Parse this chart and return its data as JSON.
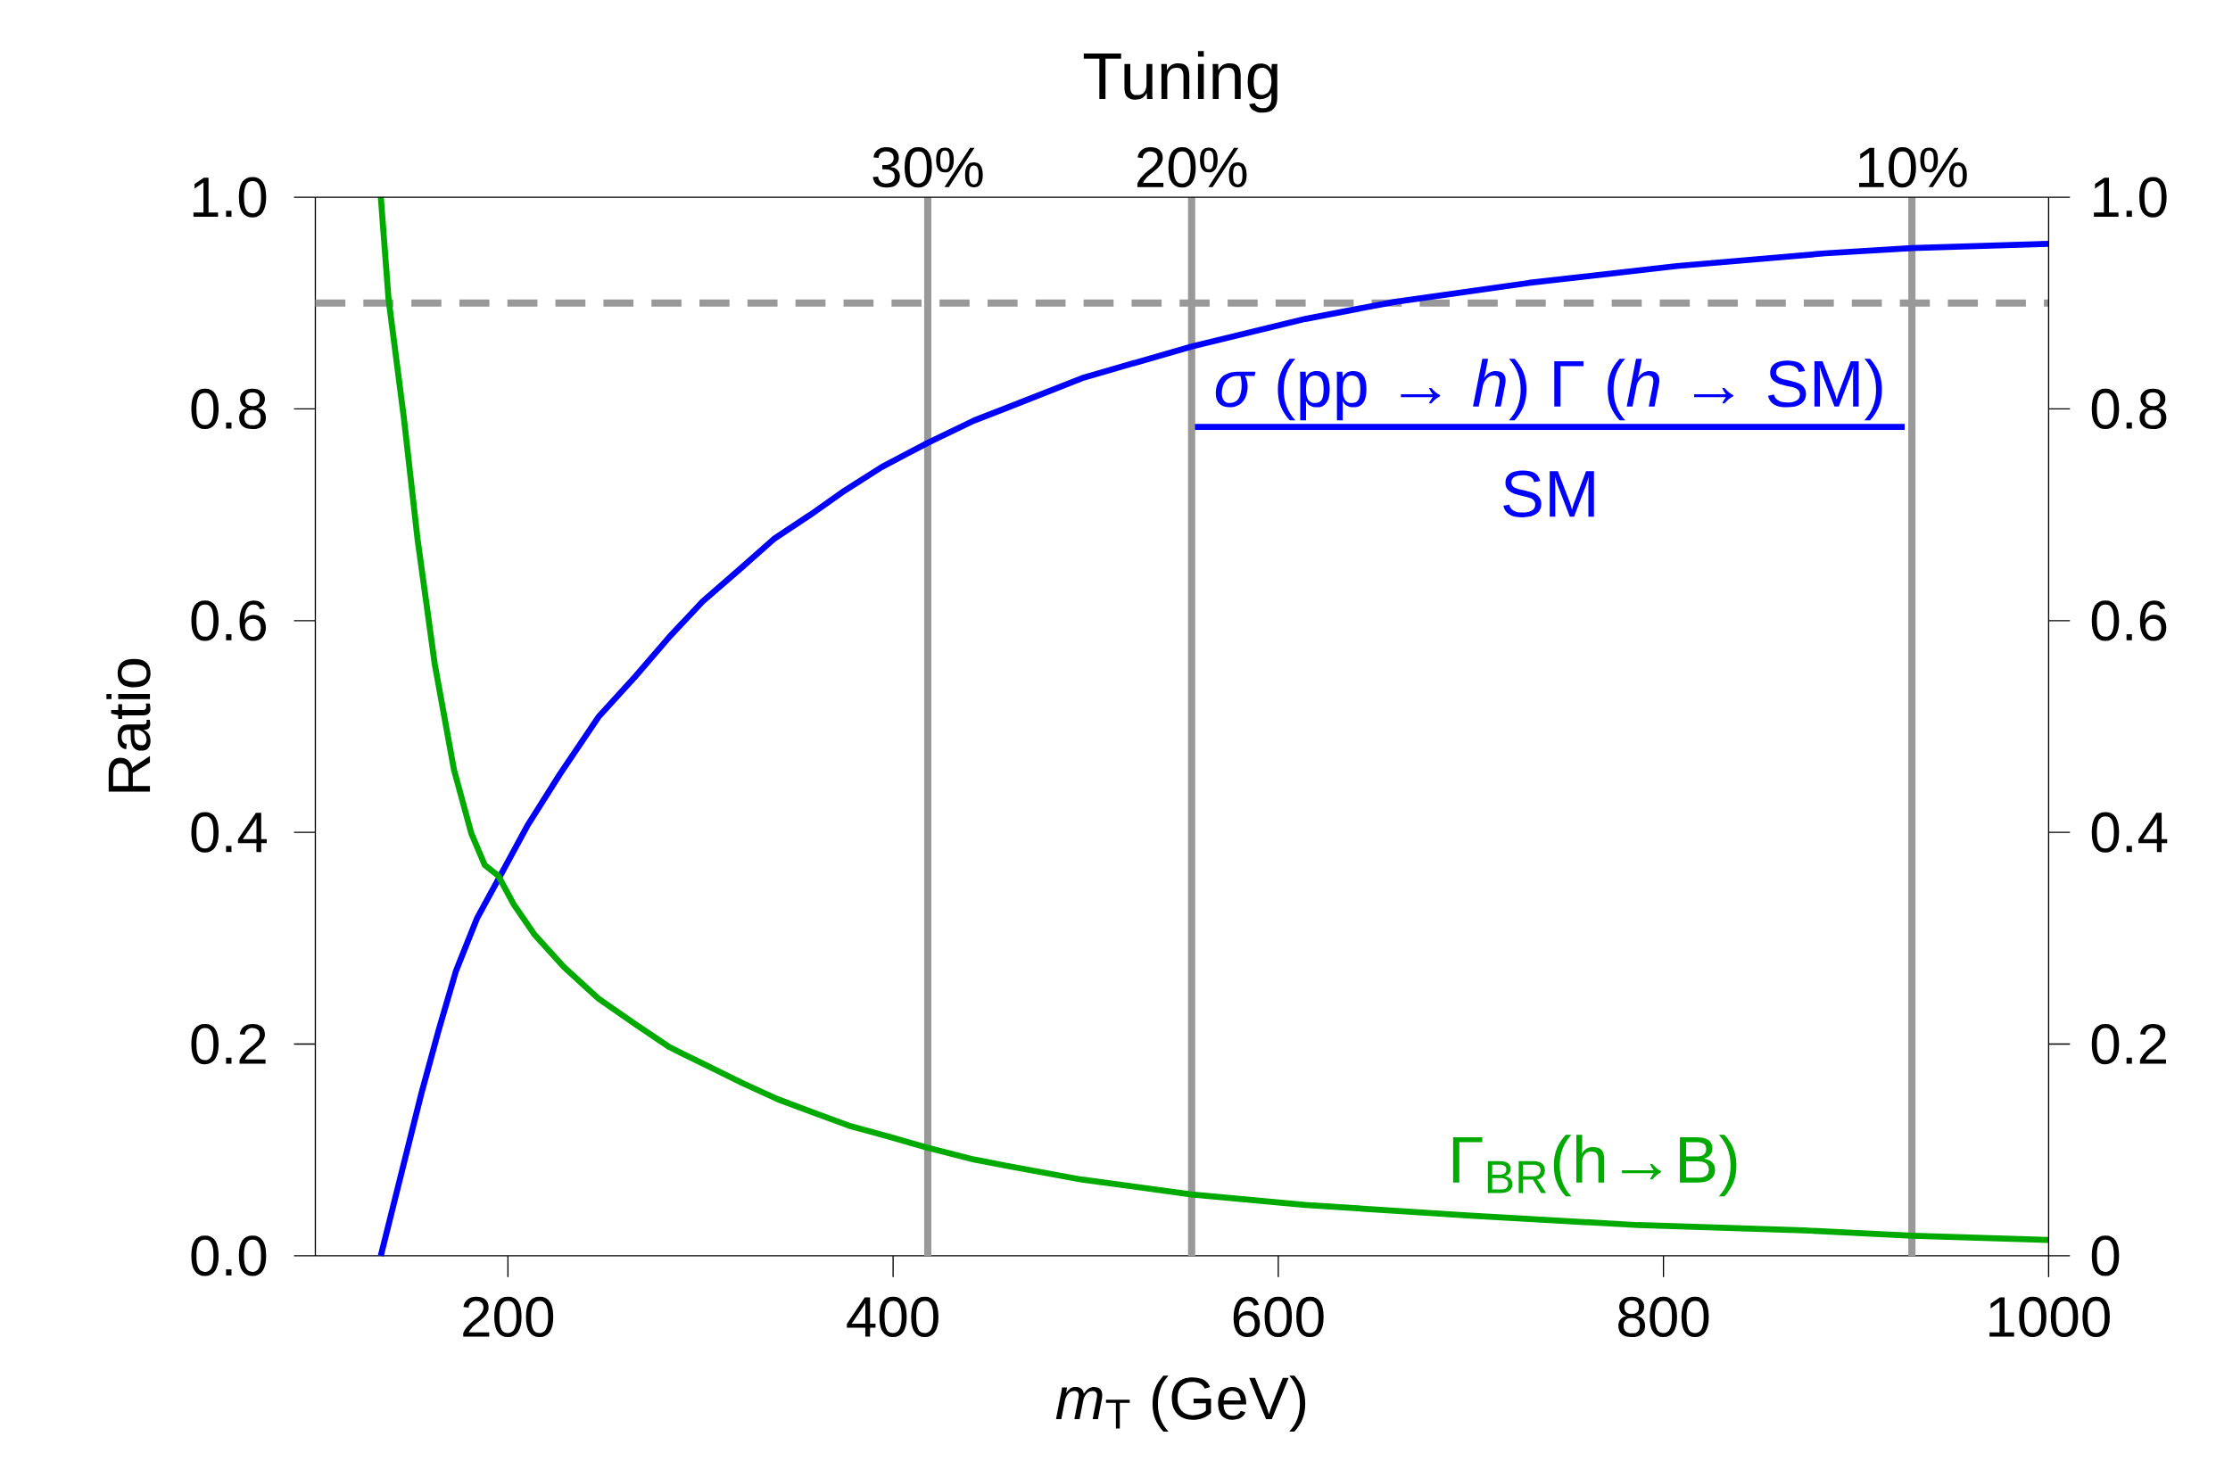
{
  "chart_data": {
    "type": "line",
    "xlabel": "*m*$_{T}$ (GeV)",
    "ylabel": "Ratio",
    "title": "Tuning",
    "annotations": [
      "SM",
      {
        "text": "30%",
        "x": 418,
        "y": 1
      },
      {
        "text": "20%",
        "x": 555,
        "y": 1
      },
      {
        "text": "10%",
        "x": 929,
        "y": 1
      }
    ],
    "xlim": [
      100,
      1000
    ],
    "xticks": [
      200,
      400,
      600,
      800,
      1000
    ],
    "ylim": [
      0,
      1
    ],
    "yticks": [
      {
        "value": 0,
        "label": "0.0"
      },
      0.2,
      0.4,
      0.6,
      0.8,
      {
        "value": 1,
        "label": "1.0"
      }
    ],
    "y2lim": [
      0,
      1
    ],
    "y2ticks": [
      {
        "value": 0,
        "label": "0"
      },
      0.2,
      0.4,
      0.6,
      0.8,
      {
        "value": 1,
        "label": "1.0"
      }
    ],
    "marker": "none",
    "line_style": "solid",
    "ref_lines": [
      {
        "axis": "x",
        "value": 418,
        "color": "#999999",
        "line_style": "solid"
      },
      {
        "axis": "x",
        "value": 555,
        "color": "#999999",
        "line_style": "solid"
      },
      {
        "axis": "x",
        "value": 929,
        "color": "#999999",
        "line_style": "solid"
      },
      {
        "axis": "y",
        "value": 0.9,
        "color": "#999999",
        "line_style": "dashed"
      }
    ],
    "series": [
      {
        "name": "*σ* (pp → *h*) Γ (*h* → SM)",
        "color": "#0000ff",
        "x": [
          134,
          144,
          155,
          164,
          173,
          184,
          196,
          210,
          227,
          247,
          266,
          284,
          301,
          320,
          338,
          357,
          375,
          394,
          418,
          442,
          459,
          498,
          555,
          614,
          660,
          730,
          807,
          884,
          929,
          1000
        ],
        "values": [
          0,
          0.073,
          0.153,
          0.213,
          0.269,
          0.319,
          0.359,
          0.406,
          0.455,
          0.509,
          0.547,
          0.585,
          0.618,
          0.648,
          0.677,
          0.7,
          0.723,
          0.745,
          0.768,
          0.789,
          0.801,
          0.829,
          0.859,
          0.885,
          0.901,
          0.919,
          0.935,
          0.947,
          0.952,
          0.956
        ]
      },
      {
        "name": "Γ$_{BR}$(h→B)",
        "color": "#00aa00",
        "x": [
          134,
          138,
          146,
          153,
          162,
          172,
          181,
          188,
          195,
          203,
          214,
          229,
          247,
          266,
          284,
          303,
          322,
          340,
          359,
          377,
          399,
          418,
          442,
          459,
          498,
          555,
          614,
          700,
          787,
          873,
          929,
          1000
        ],
        "values": [
          1.0,
          0.904,
          0.791,
          0.678,
          0.559,
          0.459,
          0.399,
          0.369,
          0.359,
          0.332,
          0.303,
          0.273,
          0.243,
          0.219,
          0.197,
          0.18,
          0.163,
          0.148,
          0.135,
          0.123,
          0.112,
          0.102,
          0.091,
          0.085,
          0.072,
          0.058,
          0.048,
          0.038,
          0.029,
          0.024,
          0.019,
          0.015
        ]
      }
    ]
  }
}
